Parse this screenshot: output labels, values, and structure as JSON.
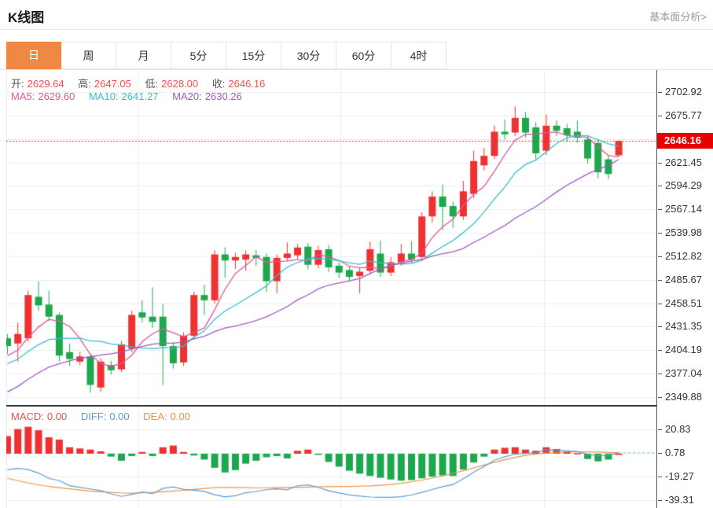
{
  "header": {
    "title": "K线图",
    "link": "基本面分析>"
  },
  "tabs": {
    "items": [
      "日",
      "周",
      "月",
      "5分",
      "15分",
      "30分",
      "60分",
      "4时"
    ],
    "active_index": 0
  },
  "colors": {
    "accent_orange": "#ef8843",
    "up": "#ee3131",
    "down": "#1da84d",
    "ma5": "#e0569e",
    "ma10": "#36bfcf",
    "ma20": "#a05ac2",
    "diff": "#5b9bd5",
    "dea": "#f0923e",
    "current_line": "#e23333",
    "price_tag_bg": "#e60000",
    "label_text": "#555555",
    "value_red": "#f24f4f",
    "grid": "#ededed",
    "zero_dash": "#8fc8e8"
  },
  "legend": {
    "ohlc": [
      {
        "label": "开:",
        "value": "2629.64"
      },
      {
        "label": "高:",
        "value": "2647.05"
      },
      {
        "label": "低:",
        "value": "2628.00"
      },
      {
        "label": "收:",
        "value": "2646.16"
      }
    ],
    "ma": [
      {
        "label": "MA5:",
        "value": "2629.60"
      },
      {
        "label": "MA10:",
        "value": "2641.27"
      },
      {
        "label": "MA20:",
        "value": "2630.26"
      }
    ],
    "macd": [
      {
        "label": "MACD:",
        "value": "0.00"
      },
      {
        "label": "DIFF:",
        "value": "0.00"
      },
      {
        "label": "DEA:",
        "value": "0.00"
      }
    ]
  },
  "price_axis": {
    "ticks": [
      {
        "label": "2702.92",
        "slot": 0
      },
      {
        "label": "2675.77",
        "slot": 1
      },
      {
        "label": "2621.45",
        "slot": 3
      },
      {
        "label": "2594.29",
        "slot": 4
      },
      {
        "label": "2567.14",
        "slot": 5
      },
      {
        "label": "2539.98",
        "slot": 6
      },
      {
        "label": "2512.82",
        "slot": 7
      },
      {
        "label": "2485.67",
        "slot": 8
      },
      {
        "label": "2458.51",
        "slot": 9
      },
      {
        "label": "2431.35",
        "slot": 10
      },
      {
        "label": "2404.19",
        "slot": 11
      },
      {
        "label": "2377.04",
        "slot": 12
      },
      {
        "label": "2349.88",
        "slot": 13
      }
    ],
    "top_price": 2702.92,
    "tick_step": 27.155,
    "current": {
      "label": "2646.16",
      "value": 2646.16
    }
  },
  "macd_axis": {
    "ticks": [
      {
        "label": "20.83",
        "slot": 0
      },
      {
        "label": "0.78",
        "slot": 1
      },
      {
        "label": "-19.27",
        "slot": 2
      },
      {
        "label": "-39.31",
        "slot": 3
      }
    ],
    "top_value": 20.83,
    "tick_step": 20.05
  },
  "chart_data": {
    "type": "candlestick",
    "title": "K线图 (daily gold K-line with MA5/MA10/MA20 and MACD)",
    "panels": {
      "main": {
        "ylim": [
          2349.88,
          2702.92
        ],
        "current_price": 2646.16,
        "ma_windows": [
          5,
          10,
          20
        ],
        "pre_history_closes": [
          2295,
          2301,
          2307,
          2313,
          2320,
          2327,
          2333,
          2339,
          2345,
          2351,
          2372,
          2377,
          2380,
          2383,
          2386,
          2391,
          2394,
          2396,
          2399
        ],
        "candles_ochl": [
          [
            2418,
            2409,
            2400,
            2423
          ],
          [
            2412,
            2423,
            2391,
            2436
          ],
          [
            2418,
            2468,
            2414,
            2473
          ],
          [
            2466,
            2456,
            2450,
            2484
          ],
          [
            2457,
            2443,
            2438,
            2473
          ],
          [
            2445,
            2398,
            2391,
            2448
          ],
          [
            2402,
            2394,
            2386,
            2412
          ],
          [
            2391,
            2397,
            2387,
            2402
          ],
          [
            2397,
            2364,
            2355,
            2400
          ],
          [
            2361,
            2391,
            2356,
            2395
          ],
          [
            2387,
            2381,
            2376,
            2392
          ],
          [
            2382,
            2411,
            2379,
            2415
          ],
          [
            2406,
            2445,
            2402,
            2450
          ],
          [
            2448,
            2442,
            2436,
            2462
          ],
          [
            2443,
            2437,
            2430,
            2477
          ],
          [
            2443,
            2409,
            2364,
            2458
          ],
          [
            2409,
            2389,
            2383,
            2413
          ],
          [
            2390,
            2421,
            2386,
            2425
          ],
          [
            2421,
            2468,
            2417,
            2472
          ],
          [
            2468,
            2462,
            2445,
            2480
          ],
          [
            2462,
            2515,
            2458,
            2520
          ],
          [
            2515,
            2508,
            2488,
            2523
          ],
          [
            2508,
            2512,
            2498,
            2517
          ],
          [
            2509,
            2515,
            2496,
            2520
          ],
          [
            2514,
            2511,
            2502,
            2520
          ],
          [
            2512,
            2484,
            2471,
            2516
          ],
          [
            2484,
            2511,
            2470,
            2515
          ],
          [
            2511,
            2516,
            2507,
            2529
          ],
          [
            2514,
            2523,
            2510,
            2527
          ],
          [
            2524,
            2503,
            2498,
            2528
          ],
          [
            2503,
            2520,
            2499,
            2525
          ],
          [
            2521,
            2500,
            2495,
            2526
          ],
          [
            2502,
            2494,
            2488,
            2506
          ],
          [
            2497,
            2489,
            2484,
            2501
          ],
          [
            2490,
            2495,
            2470,
            2499
          ],
          [
            2496,
            2521,
            2492,
            2530
          ],
          [
            2516,
            2494,
            2489,
            2531
          ],
          [
            2494,
            2506,
            2490,
            2512
          ],
          [
            2506,
            2516,
            2502,
            2527
          ],
          [
            2516,
            2509,
            2505,
            2530
          ],
          [
            2512,
            2559,
            2508,
            2564
          ],
          [
            2559,
            2582,
            2552,
            2588
          ],
          [
            2582,
            2570,
            2543,
            2596
          ],
          [
            2571,
            2559,
            2546,
            2576
          ],
          [
            2559,
            2588,
            2555,
            2600
          ],
          [
            2585,
            2623,
            2580,
            2635
          ],
          [
            2618,
            2629,
            2612,
            2638
          ],
          [
            2629,
            2657,
            2625,
            2664
          ],
          [
            2657,
            2654,
            2648,
            2671
          ],
          [
            2656,
            2673,
            2652,
            2686
          ],
          [
            2673,
            2656,
            2650,
            2680
          ],
          [
            2662,
            2632,
            2625,
            2668
          ],
          [
            2635,
            2664,
            2630,
            2677
          ],
          [
            2664,
            2658,
            2652,
            2670
          ],
          [
            2661,
            2653,
            2645,
            2666
          ],
          [
            2657,
            2650,
            2644,
            2670
          ],
          [
            2648,
            2626,
            2620,
            2652
          ],
          [
            2644,
            2610,
            2603,
            2648
          ],
          [
            2625,
            2608,
            2602,
            2630
          ],
          [
            2629.64,
            2646.16,
            2628.0,
            2647.05
          ]
        ]
      },
      "macd": {
        "ylim": [
          -39.31,
          20.83
        ],
        "histogram": [
          15,
          21,
          23,
          20,
          14,
          12,
          5.5,
          4.5,
          3.5,
          2,
          -2.5,
          -6,
          -2,
          1.5,
          -2,
          5.5,
          7,
          1.5,
          -1.5,
          -5,
          -12,
          -16,
          -14,
          -8.5,
          -6,
          -3,
          -2,
          -4,
          2.5,
          3.5,
          -1,
          -7,
          -11,
          -14.5,
          -17,
          -19,
          -20.5,
          -22,
          -23,
          -22.5,
          -21,
          -19.5,
          -18.5,
          -19,
          -13.5,
          -7.5,
          -2.5,
          3.5,
          5,
          5.5,
          3.5,
          2.5,
          5.5,
          4,
          2,
          0.5,
          -4.5,
          -6.5,
          -5,
          0
        ],
        "dea": [
          -21,
          -23,
          -25,
          -26.5,
          -28,
          -29,
          -30,
          -31,
          -31.8,
          -32.4,
          -33,
          -33.4,
          -33.6,
          -33.4,
          -33,
          -32.4,
          -31.8,
          -31.2,
          -30.4,
          -29.6,
          -29,
          -28.8,
          -28.8,
          -29,
          -29.2,
          -29.2,
          -29,
          -28.8,
          -28.6,
          -28.4,
          -28.2,
          -28.1,
          -28,
          -27.9,
          -27.7,
          -27.4,
          -26.9,
          -26.2,
          -25.2,
          -24,
          -22.5,
          -20.8,
          -18.9,
          -16.8,
          -14.5,
          -12.1,
          -9.7,
          -7.3,
          -5.1,
          -3.1,
          -1.5,
          -0.3,
          0.5,
          1.1,
          1.5,
          1.6,
          1.6,
          1.4,
          1.1,
          0.78
        ]
      }
    }
  }
}
